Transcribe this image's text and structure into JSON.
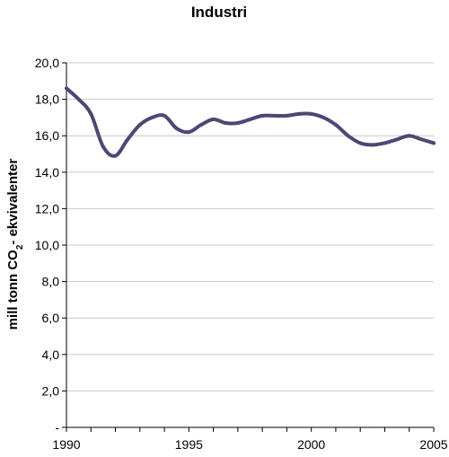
{
  "chart_data": {
    "type": "line",
    "title": "Industri",
    "ylabel": {
      "pre": "mill tonn CO",
      "sub": "2",
      "post": "- ekvivalenter"
    },
    "xlabel": "",
    "xlim": [
      1990,
      2005
    ],
    "ylim": [
      0,
      20
    ],
    "y_ticks": [
      0,
      2,
      4,
      6,
      8,
      10,
      12,
      14,
      16,
      18,
      20
    ],
    "y_tick_labels": [
      "-",
      "2,0",
      "4,0",
      "6,0",
      "8,0",
      "10,0",
      "12,0",
      "14,0",
      "16,0",
      "18,0",
      "20,0"
    ],
    "x_ticks": [
      1990,
      1995,
      2000,
      2005
    ],
    "x_tick_labels": [
      "1990",
      "1995",
      "2000",
      "2005"
    ],
    "grid": true,
    "legend": "none",
    "line_color": "#4b4876",
    "series": [
      {
        "x": [
          1990,
          1990.5,
          1991,
          1991.5,
          1992,
          1992.5,
          1993,
          1993.5,
          1994,
          1994.5,
          1995,
          1995.5,
          1996,
          1996.5,
          1997,
          1997.5,
          1998,
          1998.5,
          1999,
          1999.5,
          2000,
          2000.5,
          2001,
          2001.5,
          2002,
          2002.5,
          2003,
          2003.5,
          2004,
          2004.5,
          2005
        ],
        "y": [
          18.6,
          18.0,
          17.2,
          15.4,
          14.9,
          15.8,
          16.6,
          17.0,
          17.1,
          16.4,
          16.2,
          16.6,
          16.9,
          16.7,
          16.7,
          16.9,
          17.1,
          17.1,
          17.1,
          17.2,
          17.2,
          17.0,
          16.6,
          16.0,
          15.6,
          15.5,
          15.6,
          15.8,
          16.0,
          15.8,
          15.6
        ]
      }
    ]
  }
}
